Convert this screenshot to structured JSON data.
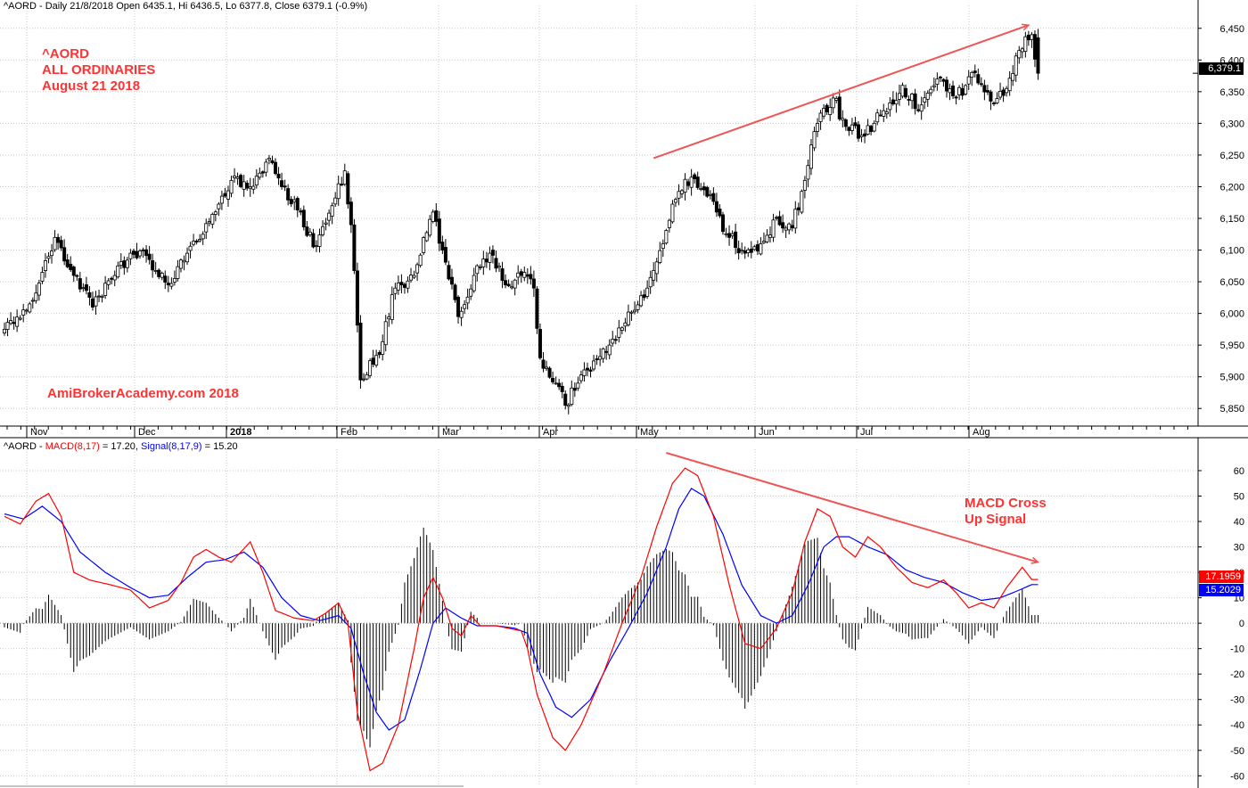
{
  "price_header": {
    "ticker": "^AORD",
    "info": " - Daily 21/8/2018 Open 6435.1, Hi 6436.5, Lo 6377.8, Close 6379.1 (-0.9%)"
  },
  "macd_header": {
    "ticker": "^AORD",
    "sep": " - ",
    "macd_label": "MACD(8,17)",
    "macd_eq": " = 17.20, ",
    "signal_label": "Signal(8,17,9)",
    "signal_eq": " = 15.20"
  },
  "annotations": {
    "name_line1": "^AORD",
    "name_line2": "ALL ORDINARIES",
    "name_line3": "August 21 2018",
    "watermark": "AmiBrokerAcademy.com  2018",
    "signal_line1": "MACD Cross",
    "signal_line2": "Up Signal"
  },
  "tags": {
    "close": "6,379.1",
    "macd": "17.1959",
    "signal": "15.2029"
  },
  "colors": {
    "candle": "#000000",
    "macd": "#ff0000",
    "signal": "#0000ff",
    "note": "#ff3333",
    "trendline": "#ee5555",
    "grid": "#c8c8c8"
  },
  "chart_data": [
    {
      "type": "candlestick",
      "title": "^AORD - Daily 21/8/2018 Open 6435.1, Hi 6436.5, Lo 6377.8, Close 6379.1 (-0.9%)",
      "date_range": [
        "2017-10-26",
        "2018-08-21"
      ],
      "x_month_labels": [
        "Nov",
        "Dec",
        "2018",
        "Feb",
        "Mar",
        "Apr",
        "May",
        "Jun",
        "Jul",
        "Aug"
      ],
      "y_ticks": [
        5850,
        5900,
        5950,
        6000,
        6050,
        6100,
        6150,
        6200,
        6250,
        6300,
        6350,
        6400,
        6450
      ],
      "y_tick_labels": [
        "5,850",
        "5,900",
        "5,950",
        "6,000",
        "6,050",
        "6,100",
        "6,150",
        "6,200",
        "6,250",
        "6,300",
        "6,350",
        "6,400",
        "6,450"
      ],
      "ylim": [
        5825,
        6475
      ],
      "close_path": [
        [
          0,
          5975
        ],
        [
          8,
          6015
        ],
        [
          16,
          6120
        ],
        [
          22,
          6060
        ],
        [
          28,
          6010
        ],
        [
          36,
          6075
        ],
        [
          44,
          6100
        ],
        [
          52,
          6045
        ],
        [
          58,
          6095
        ],
        [
          65,
          6145
        ],
        [
          72,
          6210
        ],
        [
          78,
          6200
        ],
        [
          84,
          6245
        ],
        [
          88,
          6200
        ],
        [
          94,
          6160
        ],
        [
          98,
          6105
        ],
        [
          104,
          6170
        ],
        [
          108,
          6225
        ],
        [
          110,
          6140
        ],
        [
          113,
          5895
        ],
        [
          119,
          5935
        ],
        [
          124,
          6040
        ],
        [
          130,
          6060
        ],
        [
          136,
          6160
        ],
        [
          139,
          6100
        ],
        [
          144,
          5995
        ],
        [
          149,
          6060
        ],
        [
          154,
          6095
        ],
        [
          159,
          6045
        ],
        [
          164,
          6060
        ],
        [
          168,
          6040
        ],
        [
          170,
          5930
        ],
        [
          175,
          5890
        ],
        [
          178,
          5855
        ],
        [
          182,
          5890
        ],
        [
          187,
          5925
        ],
        [
          192,
          5950
        ],
        [
          197,
          5985
        ],
        [
          204,
          6040
        ],
        [
          209,
          6110
        ],
        [
          213,
          6180
        ],
        [
          218,
          6215
        ],
        [
          222,
          6195
        ],
        [
          226,
          6160
        ],
        [
          230,
          6120
        ],
        [
          235,
          6095
        ],
        [
          240,
          6110
        ],
        [
          245,
          6150
        ],
        [
          250,
          6135
        ],
        [
          254,
          6210
        ],
        [
          258,
          6300
        ],
        [
          263,
          6340
        ],
        [
          267,
          6295
        ],
        [
          273,
          6280
        ],
        [
          279,
          6320
        ],
        [
          285,
          6360
        ],
        [
          290,
          6320
        ],
        [
          296,
          6370
        ],
        [
          302,
          6340
        ],
        [
          308,
          6380
        ],
        [
          313,
          6335
        ],
        [
          318,
          6355
        ],
        [
          322,
          6415
        ],
        [
          326,
          6440
        ],
        [
          328,
          6379
        ]
      ],
      "trendline": {
        "start": [
          "2018-05-02",
          6245
        ],
        "end": [
          "2018-08-20",
          6455
        ]
      }
    },
    {
      "type": "line",
      "title": "^AORD - MACD(8,17) = 17.20, Signal(8,17,9) = 15.20",
      "y_ticks": [
        -60,
        -50,
        -40,
        -30,
        -20,
        -10,
        0,
        10,
        20,
        30,
        40,
        50,
        60
      ],
      "ylim": [
        -62,
        67
      ],
      "series": [
        {
          "name": "MACD(8,17)",
          "points": [
            [
              0,
              42
            ],
            [
              5,
              39
            ],
            [
              10,
              48
            ],
            [
              14,
              51
            ],
            [
              18,
              42
            ],
            [
              22,
              20
            ],
            [
              27,
              17
            ],
            [
              34,
              15
            ],
            [
              40,
              13
            ],
            [
              46,
              6
            ],
            [
              52,
              9
            ],
            [
              56,
              16
            ],
            [
              60,
              26
            ],
            [
              64,
              29
            ],
            [
              68,
              26
            ],
            [
              72,
              24
            ],
            [
              78,
              32
            ],
            [
              82,
              20
            ],
            [
              86,
              5
            ],
            [
              92,
              2
            ],
            [
              98,
              1
            ],
            [
              102,
              4
            ],
            [
              106,
              8
            ],
            [
              109,
              0
            ],
            [
              112,
              -35
            ],
            [
              116,
              -58
            ],
            [
              120,
              -55
            ],
            [
              125,
              -40
            ],
            [
              130,
              -10
            ],
            [
              133,
              10
            ],
            [
              136,
              18
            ],
            [
              139,
              10
            ],
            [
              142,
              -2
            ],
            [
              145,
              -5
            ],
            [
              148,
              3
            ],
            [
              151,
              -1
            ],
            [
              156,
              -1
            ],
            [
              160,
              -2
            ],
            [
              164,
              -3
            ],
            [
              166,
              -10
            ],
            [
              169,
              -28
            ],
            [
              174,
              -45
            ],
            [
              178,
              -50
            ],
            [
              183,
              -40
            ],
            [
              190,
              -20
            ],
            [
              196,
              0
            ],
            [
              202,
              18
            ],
            [
              207,
              38
            ],
            [
              212,
              55
            ],
            [
              216,
              61
            ],
            [
              220,
              58
            ],
            [
              225,
              42
            ],
            [
              230,
              15
            ],
            [
              235,
              -8
            ],
            [
              240,
              -10
            ],
            [
              245,
              -2
            ],
            [
              250,
              12
            ],
            [
              254,
              32
            ],
            [
              258,
              45
            ],
            [
              262,
              42
            ],
            [
              266,
              30
            ],
            [
              270,
              26
            ],
            [
              274,
              34
            ],
            [
              278,
              30
            ],
            [
              283,
              22
            ],
            [
              288,
              16
            ],
            [
              293,
              14
            ],
            [
              298,
              17
            ],
            [
              302,
              12
            ],
            [
              306,
              6
            ],
            [
              310,
              8
            ],
            [
              314,
              6
            ],
            [
              318,
              14
            ],
            [
              323,
              22
            ],
            [
              326,
              17.2
            ]
          ]
        },
        {
          "name": "Signal(8,17,9)",
          "points": [
            [
              0,
              43
            ],
            [
              6,
              41
            ],
            [
              12,
              46
            ],
            [
              18,
              40
            ],
            [
              24,
              28
            ],
            [
              32,
              20
            ],
            [
              40,
              14
            ],
            [
              46,
              10
            ],
            [
              52,
              11
            ],
            [
              58,
              18
            ],
            [
              64,
              24
            ],
            [
              70,
              25
            ],
            [
              76,
              28
            ],
            [
              82,
              22
            ],
            [
              88,
              10
            ],
            [
              94,
              3
            ],
            [
              100,
              1
            ],
            [
              106,
              3
            ],
            [
              110,
              -2
            ],
            [
              114,
              -20
            ],
            [
              118,
              -35
            ],
            [
              122,
              -42
            ],
            [
              127,
              -38
            ],
            [
              132,
              -18
            ],
            [
              136,
              0
            ],
            [
              140,
              6
            ],
            [
              145,
              2
            ],
            [
              150,
              -1
            ],
            [
              156,
              -1
            ],
            [
              162,
              -2
            ],
            [
              166,
              -4
            ],
            [
              170,
              -20
            ],
            [
              175,
              -33
            ],
            [
              180,
              -37
            ],
            [
              186,
              -30
            ],
            [
              192,
              -15
            ],
            [
              198,
              -2
            ],
            [
              204,
              12
            ],
            [
              210,
              30
            ],
            [
              214,
              45
            ],
            [
              218,
              53
            ],
            [
              222,
              50
            ],
            [
              228,
              35
            ],
            [
              234,
              15
            ],
            [
              240,
              3
            ],
            [
              245,
              0
            ],
            [
              250,
              3
            ],
            [
              255,
              15
            ],
            [
              260,
              30
            ],
            [
              264,
              34
            ],
            [
              268,
              34
            ],
            [
              274,
              30
            ],
            [
              280,
              27
            ],
            [
              286,
              21
            ],
            [
              292,
              18
            ],
            [
              298,
              16
            ],
            [
              304,
              12
            ],
            [
              310,
              9
            ],
            [
              316,
              10
            ],
            [
              322,
              13
            ],
            [
              326,
              15.2
            ]
          ]
        }
      ],
      "histogram": "MACD minus Signal",
      "trendline": {
        "start": [
          "2018-05-02",
          67
        ],
        "end": [
          "2018-08-20",
          24
        ]
      }
    }
  ]
}
